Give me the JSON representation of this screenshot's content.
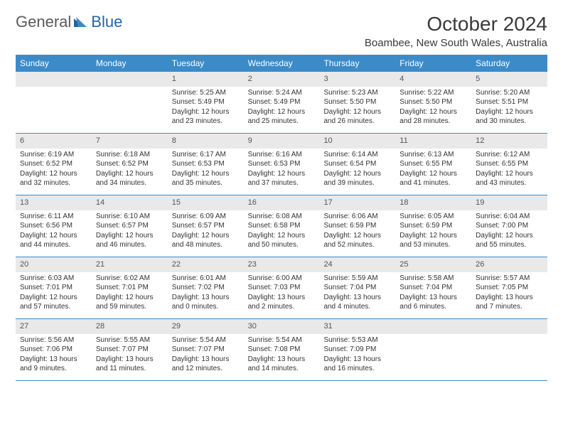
{
  "logo": {
    "text1": "General",
    "text2": "Blue"
  },
  "title": "October 2024",
  "location": "Boambee, New South Wales, Australia",
  "colors": {
    "header_bg": "#3b8bc9",
    "header_fg": "#ffffff",
    "daynum_bg": "#e9e9e9",
    "daynum_fg": "#555555",
    "text": "#333333",
    "rule": "#3b8bc9",
    "logo_accent": "#1f66a8"
  },
  "daysOfWeek": [
    "Sunday",
    "Monday",
    "Tuesday",
    "Wednesday",
    "Thursday",
    "Friday",
    "Saturday"
  ],
  "labels": {
    "sunrise": "Sunrise:",
    "sunset": "Sunset:",
    "daylight": "Daylight:"
  },
  "weeks": [
    [
      {
        "n": "",
        "empty": true
      },
      {
        "n": "",
        "empty": true
      },
      {
        "n": "1",
        "sunrise": "5:25 AM",
        "sunset": "5:49 PM",
        "daylight": "12 hours and 23 minutes."
      },
      {
        "n": "2",
        "sunrise": "5:24 AM",
        "sunset": "5:49 PM",
        "daylight": "12 hours and 25 minutes."
      },
      {
        "n": "3",
        "sunrise": "5:23 AM",
        "sunset": "5:50 PM",
        "daylight": "12 hours and 26 minutes."
      },
      {
        "n": "4",
        "sunrise": "5:22 AM",
        "sunset": "5:50 PM",
        "daylight": "12 hours and 28 minutes."
      },
      {
        "n": "5",
        "sunrise": "5:20 AM",
        "sunset": "5:51 PM",
        "daylight": "12 hours and 30 minutes."
      }
    ],
    [
      {
        "n": "6",
        "sunrise": "6:19 AM",
        "sunset": "6:52 PM",
        "daylight": "12 hours and 32 minutes."
      },
      {
        "n": "7",
        "sunrise": "6:18 AM",
        "sunset": "6:52 PM",
        "daylight": "12 hours and 34 minutes."
      },
      {
        "n": "8",
        "sunrise": "6:17 AM",
        "sunset": "6:53 PM",
        "daylight": "12 hours and 35 minutes."
      },
      {
        "n": "9",
        "sunrise": "6:16 AM",
        "sunset": "6:53 PM",
        "daylight": "12 hours and 37 minutes."
      },
      {
        "n": "10",
        "sunrise": "6:14 AM",
        "sunset": "6:54 PM",
        "daylight": "12 hours and 39 minutes."
      },
      {
        "n": "11",
        "sunrise": "6:13 AM",
        "sunset": "6:55 PM",
        "daylight": "12 hours and 41 minutes."
      },
      {
        "n": "12",
        "sunrise": "6:12 AM",
        "sunset": "6:55 PM",
        "daylight": "12 hours and 43 minutes."
      }
    ],
    [
      {
        "n": "13",
        "sunrise": "6:11 AM",
        "sunset": "6:56 PM",
        "daylight": "12 hours and 44 minutes."
      },
      {
        "n": "14",
        "sunrise": "6:10 AM",
        "sunset": "6:57 PM",
        "daylight": "12 hours and 46 minutes."
      },
      {
        "n": "15",
        "sunrise": "6:09 AM",
        "sunset": "6:57 PM",
        "daylight": "12 hours and 48 minutes."
      },
      {
        "n": "16",
        "sunrise": "6:08 AM",
        "sunset": "6:58 PM",
        "daylight": "12 hours and 50 minutes."
      },
      {
        "n": "17",
        "sunrise": "6:06 AM",
        "sunset": "6:59 PM",
        "daylight": "12 hours and 52 minutes."
      },
      {
        "n": "18",
        "sunrise": "6:05 AM",
        "sunset": "6:59 PM",
        "daylight": "12 hours and 53 minutes."
      },
      {
        "n": "19",
        "sunrise": "6:04 AM",
        "sunset": "7:00 PM",
        "daylight": "12 hours and 55 minutes."
      }
    ],
    [
      {
        "n": "20",
        "sunrise": "6:03 AM",
        "sunset": "7:01 PM",
        "daylight": "12 hours and 57 minutes."
      },
      {
        "n": "21",
        "sunrise": "6:02 AM",
        "sunset": "7:01 PM",
        "daylight": "12 hours and 59 minutes."
      },
      {
        "n": "22",
        "sunrise": "6:01 AM",
        "sunset": "7:02 PM",
        "daylight": "13 hours and 0 minutes."
      },
      {
        "n": "23",
        "sunrise": "6:00 AM",
        "sunset": "7:03 PM",
        "daylight": "13 hours and 2 minutes."
      },
      {
        "n": "24",
        "sunrise": "5:59 AM",
        "sunset": "7:04 PM",
        "daylight": "13 hours and 4 minutes."
      },
      {
        "n": "25",
        "sunrise": "5:58 AM",
        "sunset": "7:04 PM",
        "daylight": "13 hours and 6 minutes."
      },
      {
        "n": "26",
        "sunrise": "5:57 AM",
        "sunset": "7:05 PM",
        "daylight": "13 hours and 7 minutes."
      }
    ],
    [
      {
        "n": "27",
        "sunrise": "5:56 AM",
        "sunset": "7:06 PM",
        "daylight": "13 hours and 9 minutes."
      },
      {
        "n": "28",
        "sunrise": "5:55 AM",
        "sunset": "7:07 PM",
        "daylight": "13 hours and 11 minutes."
      },
      {
        "n": "29",
        "sunrise": "5:54 AM",
        "sunset": "7:07 PM",
        "daylight": "13 hours and 12 minutes."
      },
      {
        "n": "30",
        "sunrise": "5:54 AM",
        "sunset": "7:08 PM",
        "daylight": "13 hours and 14 minutes."
      },
      {
        "n": "31",
        "sunrise": "5:53 AM",
        "sunset": "7:09 PM",
        "daylight": "13 hours and 16 minutes."
      },
      {
        "n": "",
        "empty": true
      },
      {
        "n": "",
        "empty": true
      }
    ]
  ]
}
